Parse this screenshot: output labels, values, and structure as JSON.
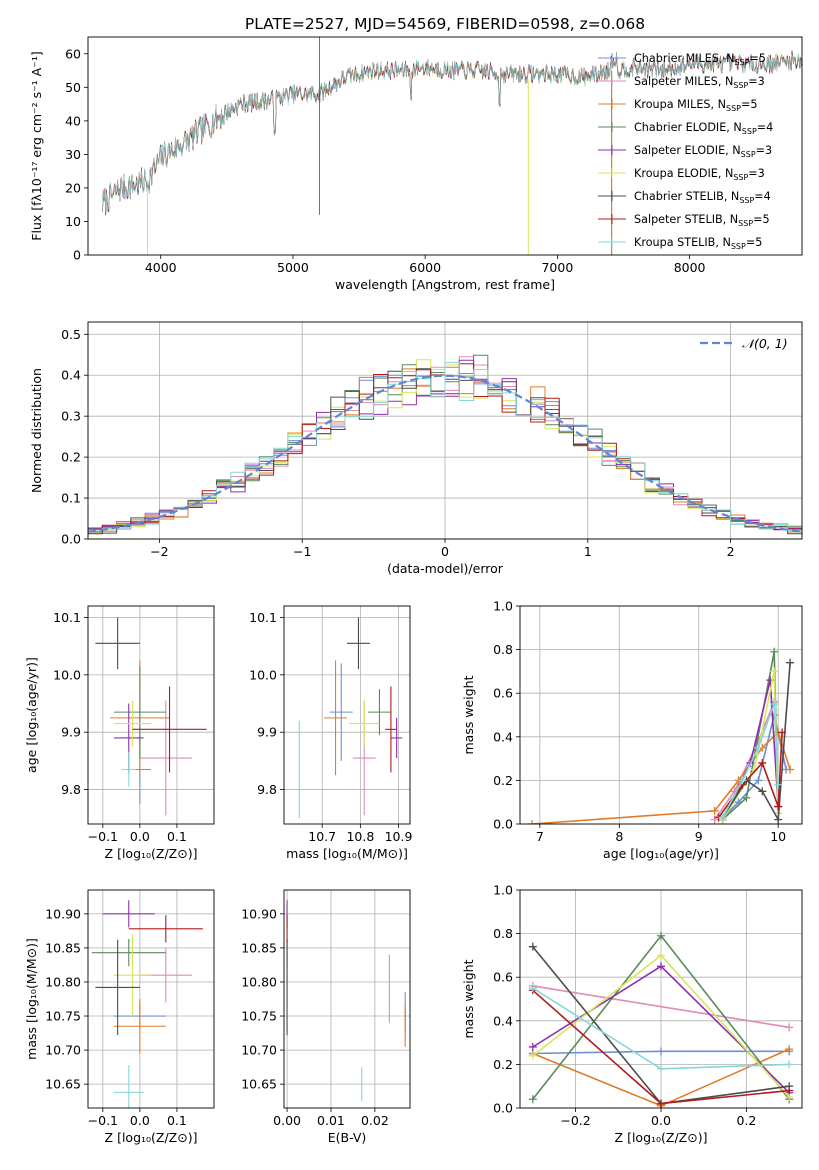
{
  "page_title": "PLATE=2527, MJD=54569, FIBERID=0598, z=0.068",
  "palette": {
    "Chabrier MILES": "#6d8fd7",
    "Salpeter MILES": "#e08ab8",
    "Kroupa MILES": "#e07b28",
    "Chabrier ELODIE": "#5a8a5a",
    "Salpeter ELODIE": "#8e2fb0",
    "Kroupa ELODIE": "#d6e65a",
    "Chabrier STELIB": "#4d4d4d",
    "Salpeter STELIB": "#b01c1c",
    "Kroupa STELIB": "#86d7d7"
  },
  "chart_data": [
    {
      "id": "spectrum",
      "type": "line",
      "title": "PLATE=2527, MJD=54569, FIBERID=0598, z=0.068",
      "xlabel": "wavelength [Angstrom, rest frame]",
      "ylabel": "Flux [fλ10⁻¹⁷ erg cm⁻² s⁻¹ A⁻¹]",
      "xlim": [
        3450,
        8850
      ],
      "ylim": [
        0,
        65
      ],
      "xticks": [
        4000,
        5000,
        6000,
        7000,
        8000
      ],
      "yticks": [
        0,
        10,
        20,
        30,
        40,
        50,
        60
      ],
      "grid": false,
      "legend_position": "top-right",
      "legend": [
        {
          "name": "Chabrier MILES",
          "nssp": "5"
        },
        {
          "name": "Salpeter MILES",
          "nssp": "3"
        },
        {
          "name": "Kroupa MILES",
          "nssp": "5"
        },
        {
          "name": "Chabrier ELODIE",
          "nssp": "4"
        },
        {
          "name": "Salpeter ELODIE",
          "nssp": "3"
        },
        {
          "name": "Kroupa ELODIE",
          "nssp": "3"
        },
        {
          "name": "Chabrier STELIB",
          "nssp": "4"
        },
        {
          "name": "Salpeter STELIB",
          "nssp": "5"
        },
        {
          "name": "Kroupa STELIB",
          "nssp": "5"
        }
      ],
      "continuum": [
        [
          3550,
          15
        ],
        [
          3700,
          20
        ],
        [
          3900,
          22
        ],
        [
          4000,
          29
        ],
        [
          4200,
          34
        ],
        [
          4400,
          40
        ],
        [
          4600,
          45
        ],
        [
          4800,
          46
        ],
        [
          5000,
          48
        ],
        [
          5200,
          48
        ],
        [
          5400,
          53
        ],
        [
          5600,
          55
        ],
        [
          5800,
          55
        ],
        [
          6000,
          56
        ],
        [
          6200,
          55
        ],
        [
          6400,
          55
        ],
        [
          6600,
          54
        ],
        [
          6800,
          54
        ],
        [
          7000,
          54
        ],
        [
          7200,
          53
        ],
        [
          7400,
          55
        ],
        [
          7600,
          56
        ],
        [
          7800,
          55
        ],
        [
          8000,
          57
        ],
        [
          8200,
          57
        ],
        [
          8400,
          57
        ],
        [
          8600,
          57
        ],
        [
          8800,
          58
        ]
      ],
      "spikes": [
        [
          3900,
          0
        ],
        [
          5200,
          65
        ],
        [
          5200,
          12
        ],
        [
          6780,
          0
        ],
        [
          7410,
          0
        ]
      ]
    },
    {
      "id": "residuals",
      "type": "histogram",
      "xlabel": "(data-model)/error",
      "ylabel": "Normed distribution",
      "xlim": [
        -2.5,
        2.5
      ],
      "ylim": [
        0,
        0.53
      ],
      "xticks": [
        -2,
        -1,
        0,
        1,
        2
      ],
      "yticks": [
        0.0,
        0.1,
        0.2,
        0.3,
        0.4,
        0.5
      ],
      "grid": true,
      "legend_position": "top-right",
      "reference_curve": {
        "label": "𝒩(0, 1)",
        "mean": 0,
        "sigma": 1
      },
      "bin_width": 0.1
    },
    {
      "id": "age-vs-Z",
      "type": "scatter",
      "xlabel": "Z [log₁₀(Z/Z⊙)]",
      "ylabel": "age  [log₁₀(age/yr)]",
      "xlim": [
        -0.14,
        0.2
      ],
      "ylim": [
        9.74,
        10.12
      ],
      "xticks": [
        -0.1,
        0.0,
        0.1
      ],
      "yticks": [
        9.8,
        9.9,
        10.0,
        10.1
      ],
      "grid": true,
      "points": [
        {
          "series": "Chabrier MILES",
          "x": 0.0,
          "y": 9.835,
          "xerr": 0.03,
          "yerr": 0.06
        },
        {
          "series": "Salpeter MILES",
          "x": 0.07,
          "y": 9.855,
          "xerr": 0.07,
          "yerr": 0.1
        },
        {
          "series": "Kroupa MILES",
          "x": 0.0,
          "y": 9.925,
          "xerr": 0.08,
          "yerr": 0.1
        },
        {
          "series": "Chabrier ELODIE",
          "x": 0.0,
          "y": 9.935,
          "xerr": 0.07,
          "yerr": 0.08
        },
        {
          "series": "Salpeter ELODIE",
          "x": -0.03,
          "y": 9.89,
          "xerr": 0.04,
          "yerr": 0.06
        },
        {
          "series": "Kroupa ELODIE",
          "x": -0.02,
          "y": 9.915,
          "xerr": 0.05,
          "yerr": 0.04
        },
        {
          "series": "Chabrier STELIB",
          "x": -0.06,
          "y": 10.055,
          "xerr": 0.06,
          "yerr": 0.045
        },
        {
          "series": "Salpeter STELIB",
          "x": 0.08,
          "y": 9.905,
          "xerr": 0.1,
          "yerr": 0.075
        },
        {
          "series": "Kroupa STELIB",
          "x": -0.03,
          "y": 9.835,
          "xerr": 0.02,
          "yerr": 0.03
        }
      ]
    },
    {
      "id": "age-vs-mass",
      "type": "scatter",
      "xlabel": "mass [log₁₀(M/M⊙)]",
      "ylabel": "",
      "xlim": [
        10.6,
        10.93
      ],
      "ylim": [
        9.74,
        10.12
      ],
      "xticks": [
        10.7,
        10.8,
        10.9
      ],
      "yticks": [
        9.8,
        9.9,
        10.0,
        10.1
      ],
      "grid": true,
      "points": [
        {
          "series": "Chabrier MILES",
          "x": 10.75,
          "y": 9.935,
          "xerr": 0.03,
          "yerr": 0.085
        },
        {
          "series": "Salpeter MILES",
          "x": 10.81,
          "y": 9.855,
          "xerr": 0.03,
          "yerr": 0.1
        },
        {
          "series": "Kroupa MILES",
          "x": 10.735,
          "y": 9.925,
          "xerr": 0.03,
          "yerr": 0.1
        },
        {
          "series": "Chabrier ELODIE",
          "x": 10.85,
          "y": 9.935,
          "xerr": 0.03,
          "yerr": 0.04
        },
        {
          "series": "Salpeter ELODIE",
          "x": 10.895,
          "y": 9.89,
          "xerr": 0.015,
          "yerr": 0.035
        },
        {
          "series": "Kroupa ELODIE",
          "x": 10.81,
          "y": 9.915,
          "xerr": 0.04,
          "yerr": 0.04
        },
        {
          "series": "Chabrier STELIB",
          "x": 10.795,
          "y": 10.055,
          "xerr": 0.03,
          "yerr": 0.045
        },
        {
          "series": "Salpeter STELIB",
          "x": 10.88,
          "y": 9.905,
          "xerr": 0.015,
          "yerr": 0.075
        },
        {
          "series": "Kroupa STELIB",
          "x": 10.64,
          "y": 9.835,
          "xerr": 0.0,
          "yerr": 0.085
        }
      ]
    },
    {
      "id": "weight-vs-age",
      "type": "line",
      "xlabel": "age  [log₁₀(age/yr)]",
      "ylabel": "mass weight",
      "xlim": [
        6.75,
        10.3
      ],
      "ylim": [
        0,
        1
      ],
      "xticks": [
        7,
        8,
        9,
        10
      ],
      "yticks": [
        0.0,
        0.2,
        0.4,
        0.6,
        0.8,
        1.0
      ],
      "grid": true,
      "series": [
        {
          "name": "Chabrier MILES",
          "x": [
            9.3,
            9.5,
            9.75,
            9.95,
            10.1
          ],
          "y": [
            0.03,
            0.1,
            0.2,
            0.5,
            0.25
          ]
        },
        {
          "name": "Salpeter MILES",
          "x": [
            9.2,
            9.45,
            9.75,
            9.95
          ],
          "y": [
            0.02,
            0.15,
            0.38,
            0.56
          ]
        },
        {
          "name": "Kroupa MILES",
          "x": [
            6.9,
            9.2,
            9.5,
            9.8,
            10.0,
            10.15
          ],
          "y": [
            0.0,
            0.06,
            0.2,
            0.35,
            0.42,
            0.25
          ]
        },
        {
          "name": "Chabrier ELODIE",
          "x": [
            9.3,
            9.6,
            9.95,
            10.0
          ],
          "y": [
            0.02,
            0.12,
            0.79,
            0.05
          ]
        },
        {
          "name": "Salpeter ELODIE",
          "x": [
            9.3,
            9.65,
            9.9,
            10.0
          ],
          "y": [
            0.02,
            0.28,
            0.66,
            0.08
          ]
        },
        {
          "name": "Kroupa ELODIE",
          "x": [
            9.3,
            9.7,
            9.95,
            10.0
          ],
          "y": [
            0.02,
            0.25,
            0.7,
            0.05
          ]
        },
        {
          "name": "Chabrier STELIB",
          "x": [
            9.3,
            9.6,
            9.8,
            10.0,
            10.15
          ],
          "y": [
            0.03,
            0.2,
            0.15,
            0.02,
            0.74
          ]
        },
        {
          "name": "Salpeter STELIB",
          "x": [
            9.25,
            9.55,
            9.8,
            10.0,
            10.05
          ],
          "y": [
            0.03,
            0.18,
            0.28,
            0.08,
            0.42
          ]
        },
        {
          "name": "Kroupa STELIB",
          "x": [
            9.3,
            9.55,
            9.75,
            9.95,
            10.0
          ],
          "y": [
            0.03,
            0.2,
            0.35,
            0.55,
            0.18
          ]
        }
      ]
    },
    {
      "id": "mass-vs-Z",
      "type": "scatter",
      "xlabel": "Z [log₁₀(Z/Z⊙)]",
      "ylabel": "mass [log₁₀(M/M⊙)]",
      "xlim": [
        -0.14,
        0.2
      ],
      "ylim": [
        10.615,
        10.935
      ],
      "xticks": [
        -0.1,
        0.0,
        0.1
      ],
      "yticks": [
        10.65,
        10.7,
        10.75,
        10.8,
        10.85,
        10.9
      ],
      "grid": true,
      "points": [
        {
          "series": "Chabrier MILES",
          "x": 0.0,
          "y": 10.75,
          "xerr": 0.07,
          "yerr": 0.02
        },
        {
          "series": "Salpeter MILES",
          "x": 0.07,
          "y": 10.81,
          "xerr": 0.07,
          "yerr": 0.04
        },
        {
          "series": "Kroupa MILES",
          "x": 0.0,
          "y": 10.735,
          "xerr": 0.07,
          "yerr": 0.04
        },
        {
          "series": "Chabrier ELODIE",
          "x": -0.03,
          "y": 10.843,
          "xerr": 0.1,
          "yerr": 0.02
        },
        {
          "series": "Salpeter ELODIE",
          "x": -0.03,
          "y": 10.9,
          "xerr": 0.07,
          "yerr": 0.02
        },
        {
          "series": "Kroupa ELODIE",
          "x": -0.02,
          "y": 10.81,
          "xerr": 0.05,
          "yerr": 0.06
        },
        {
          "series": "Chabrier STELIB",
          "x": -0.06,
          "y": 10.792,
          "xerr": 0.06,
          "yerr": 0.07
        },
        {
          "series": "Salpeter STELIB",
          "x": 0.07,
          "y": 10.878,
          "xerr": 0.1,
          "yerr": 0.02
        },
        {
          "series": "Kroupa STELIB",
          "x": -0.03,
          "y": 10.638,
          "xerr": 0.04,
          "yerr": 0.04
        }
      ]
    },
    {
      "id": "mass-vs-EBV",
      "type": "scatter",
      "xlabel": "E(B-V)",
      "ylabel": "",
      "xlim": [
        -0.0007,
        0.028
      ],
      "ylim": [
        10.615,
        10.935
      ],
      "xticks": [
        0.0,
        0.01,
        0.02
      ],
      "yticks": [
        10.65,
        10.7,
        10.75,
        10.8,
        10.85,
        10.9
      ],
      "grid": true,
      "points": [
        {
          "series": "Chabrier MILES",
          "x": 0.0269,
          "y": 10.755,
          "xerr": 0,
          "yerr": 0.03
        },
        {
          "series": "Salpeter MILES",
          "x": 0.0233,
          "y": 10.79,
          "xerr": 0,
          "yerr": 0.05
        },
        {
          "series": "Kroupa MILES",
          "x": 0.0269,
          "y": 10.735,
          "xerr": 0,
          "yerr": 0.03
        },
        {
          "series": "Chabrier ELODIE",
          "x": 0.0,
          "y": 10.843,
          "xerr": 0,
          "yerr": 0.02
        },
        {
          "series": "Salpeter ELODIE",
          "x": 0.0,
          "y": 10.9,
          "xerr": 0,
          "yerr": 0.02
        },
        {
          "series": "Kroupa ELODIE",
          "x": 0.0,
          "y": 10.81,
          "xerr": 0,
          "yerr": 0.03
        },
        {
          "series": "Chabrier STELIB",
          "x": 0.0,
          "y": 10.792,
          "xerr": 0,
          "yerr": 0.07
        },
        {
          "series": "Salpeter STELIB",
          "x": 0.0,
          "y": 10.878,
          "xerr": 0,
          "yerr": 0.02
        },
        {
          "series": "Kroupa STELIB",
          "x": 0.017,
          "y": 10.65,
          "xerr": 0,
          "yerr": 0.025
        }
      ]
    },
    {
      "id": "weight-vs-Z",
      "type": "line",
      "xlabel": "Z [log₁₀(Z/Z⊙)]",
      "ylabel": "mass weight",
      "xlim": [
        -0.33,
        0.33
      ],
      "ylim": [
        0,
        1
      ],
      "xticks": [
        -0.2,
        0.0,
        0.2
      ],
      "yticks": [
        0.0,
        0.2,
        0.4,
        0.6,
        0.8,
        1.0
      ],
      "grid": true,
      "series": [
        {
          "name": "Chabrier MILES",
          "x": [
            -0.3,
            0.0,
            0.3
          ],
          "y": [
            0.25,
            0.26,
            0.26
          ]
        },
        {
          "name": "Salpeter MILES",
          "x": [
            -0.3,
            0.3
          ],
          "y": [
            0.56,
            0.37
          ]
        },
        {
          "name": "Kroupa MILES",
          "x": [
            -0.3,
            0.0,
            0.3
          ],
          "y": [
            0.25,
            0.01,
            0.27
          ]
        },
        {
          "name": "Chabrier ELODIE",
          "x": [
            -0.3,
            0.0,
            0.3
          ],
          "y": [
            0.04,
            0.79,
            0.04
          ]
        },
        {
          "name": "Salpeter ELODIE",
          "x": [
            -0.3,
            0.0,
            0.3
          ],
          "y": [
            0.28,
            0.65,
            0.07
          ]
        },
        {
          "name": "Kroupa ELODIE",
          "x": [
            -0.3,
            0.0,
            0.3
          ],
          "y": [
            0.24,
            0.7,
            0.05
          ]
        },
        {
          "name": "Chabrier STELIB",
          "x": [
            -0.3,
            0.0,
            0.3
          ],
          "y": [
            0.74,
            0.02,
            0.1
          ]
        },
        {
          "name": "Salpeter STELIB",
          "x": [
            -0.3,
            0.0,
            0.3
          ],
          "y": [
            0.54,
            0.02,
            0.08
          ]
        },
        {
          "name": "Kroupa STELIB",
          "x": [
            -0.3,
            0.0,
            0.3
          ],
          "y": [
            0.55,
            0.18,
            0.2
          ]
        }
      ]
    }
  ]
}
